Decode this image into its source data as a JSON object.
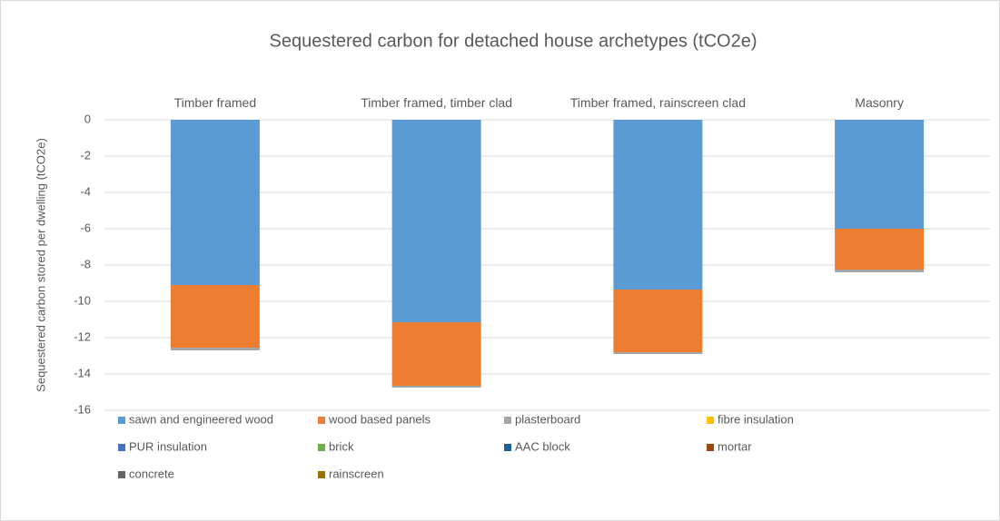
{
  "chart_data": {
    "type": "stacked_bar",
    "title": "Sequestered carbon for detached house archetypes (tCO2e)",
    "y_label": "Sequestered carbon stored per dwelling (tCO2e)",
    "categories": [
      "Timber framed",
      "Timber framed, timber clad",
      "Timber framed, rainscreen clad",
      "Masonry"
    ],
    "series": [
      {
        "name": "sawn and engineered wood",
        "color": "#5b9bd5",
        "values": [
          -9.1,
          -11.15,
          -9.35,
          -6.0
        ]
      },
      {
        "name": "wood based panels",
        "color": "#ed7d31",
        "values": [
          -3.45,
          -3.5,
          -3.45,
          -2.25
        ]
      },
      {
        "name": "plasterboard",
        "color": "#a5a5a5",
        "values": [
          -0.15,
          -0.1,
          -0.1,
          -0.15
        ]
      },
      {
        "name": "fibre insulation",
        "color": "#ffc000",
        "values": [
          0,
          0,
          0,
          0
        ]
      },
      {
        "name": "PUR insulation",
        "color": "#4472c4",
        "values": [
          0,
          0,
          0,
          0
        ]
      },
      {
        "name": "brick",
        "color": "#70ad47",
        "values": [
          0,
          0,
          0,
          0
        ]
      },
      {
        "name": "AAC block",
        "color": "#255e91",
        "values": [
          0,
          0,
          0,
          0
        ]
      },
      {
        "name": "mortar",
        "color": "#9e480e",
        "values": [
          0,
          0,
          0,
          0
        ]
      },
      {
        "name": "concrete",
        "color": "#636363",
        "values": [
          0,
          0,
          0,
          0
        ]
      },
      {
        "name": "rainscreen",
        "color": "#997300",
        "values": [
          0,
          0,
          0,
          0
        ]
      }
    ],
    "ylim": [
      -16,
      0
    ],
    "yticks": [
      -16,
      -14,
      -12,
      -10,
      -8,
      -6,
      -4,
      -2,
      0
    ],
    "grid": true
  }
}
